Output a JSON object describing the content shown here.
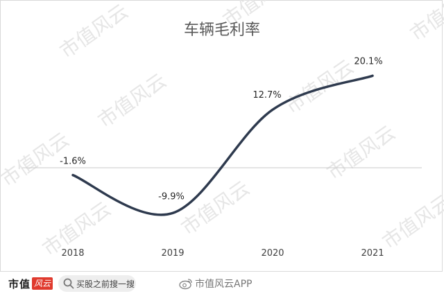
{
  "chart_data": {
    "type": "line",
    "title": "车辆毛利率",
    "categories": [
      "2018",
      "2019",
      "2020",
      "2021"
    ],
    "series": [
      {
        "values": [
          -1.6,
          -9.9,
          12.7,
          20.1
        ]
      }
    ],
    "data_labels": [
      "-1.6%",
      "-9.9%",
      "12.7%",
      "20.1%"
    ],
    "zero_line": true,
    "line_color": "#2e3a4e",
    "smooth": true
  },
  "watermark": {
    "text": "市值风云"
  },
  "footer": {
    "brand_text": "市值",
    "brand_mark": "风云",
    "search_placeholder": "买股之前搜一搜",
    "weibo_handle": "市值风云APP"
  }
}
